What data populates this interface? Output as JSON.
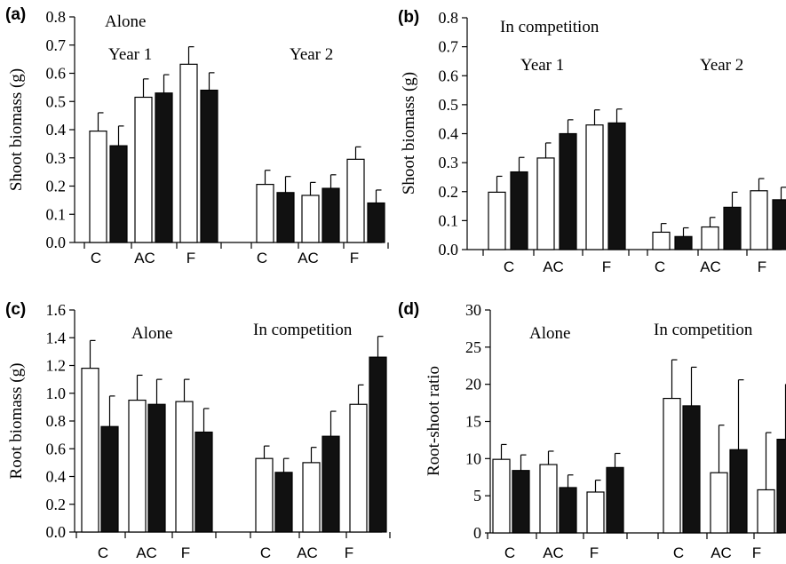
{
  "chart_data": [
    {
      "type": "bar",
      "panel_label": "(a)",
      "ylabel": "Shoot biomass (g)",
      "ylim": [
        0,
        0.8
      ],
      "yticks": [
        "0.0",
        "0.1",
        "0.2",
        "0.3",
        "0.4",
        "0.5",
        "0.6",
        "0.7",
        "0.8"
      ],
      "annotations": [
        "Alone",
        "Year 1",
        "Year 2"
      ],
      "groups": [
        {
          "categories": [
            "C",
            "AC",
            "F"
          ],
          "open": [
            0.395,
            0.515,
            0.632
          ],
          "open_err": [
            0.065,
            0.065,
            0.062
          ],
          "filled": [
            0.343,
            0.53,
            0.54
          ],
          "filled_err": [
            0.07,
            0.065,
            0.062
          ]
        },
        {
          "categories": [
            "C",
            "AC",
            "F"
          ],
          "open": [
            0.206,
            0.167,
            0.295
          ],
          "open_err": [
            0.05,
            0.046,
            0.044
          ],
          "filled": [
            0.177,
            0.192,
            0.14
          ],
          "filled_err": [
            0.057,
            0.048,
            0.046
          ]
        }
      ]
    },
    {
      "type": "bar",
      "panel_label": "(b)",
      "ylabel": "Shoot biomass (g)",
      "ylim": [
        0,
        0.8
      ],
      "yticks": [
        "0.0",
        "0.1",
        "0.2",
        "0.3",
        "0.4",
        "0.5",
        "0.6",
        "0.7",
        "0.8"
      ],
      "annotations": [
        "In competition",
        "Year 1",
        "Year 2"
      ],
      "groups": [
        {
          "categories": [
            "C",
            "AC",
            "F"
          ],
          "open": [
            0.198,
            0.316,
            0.43
          ],
          "open_err": [
            0.055,
            0.052,
            0.052
          ],
          "filled": [
            0.268,
            0.4,
            0.437
          ],
          "filled_err": [
            0.05,
            0.048,
            0.048
          ]
        },
        {
          "categories": [
            "C",
            "AC",
            "F"
          ],
          "open": [
            0.06,
            0.078,
            0.203
          ],
          "open_err": [
            0.03,
            0.033,
            0.042
          ],
          "filled": [
            0.045,
            0.146,
            0.172
          ],
          "filled_err": [
            0.03,
            0.052,
            0.043
          ]
        }
      ]
    },
    {
      "type": "bar",
      "panel_label": "(c)",
      "ylabel": "Root biomass (g)",
      "ylim": [
        0,
        1.6
      ],
      "yticks": [
        "0.0",
        "0.2",
        "0.4",
        "0.6",
        "0.8",
        "1.0",
        "1.2",
        "1.4",
        "1.6"
      ],
      "annotations": [
        "Alone",
        "In competition"
      ],
      "groups": [
        {
          "categories": [
            "C",
            "AC",
            "F"
          ],
          "open": [
            1.18,
            0.95,
            0.94
          ],
          "open_err": [
            0.2,
            0.18,
            0.16
          ],
          "filled": [
            0.76,
            0.92,
            0.72
          ],
          "filled_err": [
            0.22,
            0.18,
            0.17
          ]
        },
        {
          "categories": [
            "C",
            "AC",
            "F"
          ],
          "open": [
            0.53,
            0.5,
            0.92
          ],
          "open_err": [
            0.09,
            0.11,
            0.14
          ],
          "filled": [
            0.43,
            0.69,
            1.26
          ],
          "filled_err": [
            0.1,
            0.18,
            0.15
          ]
        }
      ]
    },
    {
      "type": "bar",
      "panel_label": "(d)",
      "ylabel": "Root-shoot ratio",
      "ylim": [
        0,
        30
      ],
      "yticks": [
        "0",
        "5",
        "10",
        "15",
        "20",
        "25",
        "30"
      ],
      "annotations": [
        "Alone",
        "In competition"
      ],
      "groups": [
        {
          "categories": [
            "C",
            "AC",
            "F"
          ],
          "open": [
            9.9,
            9.2,
            5.5
          ],
          "open_err": [
            2.0,
            1.8,
            1.6
          ],
          "filled": [
            8.4,
            6.1,
            8.8
          ],
          "filled_err": [
            2.1,
            1.7,
            1.9
          ]
        },
        {
          "categories": [
            "C",
            "AC",
            "F"
          ],
          "open": [
            18.1,
            8.1,
            5.8
          ],
          "open_err": [
            5.2,
            6.4,
            7.7
          ],
          "filled": [
            17.1,
            11.2,
            12.6
          ],
          "filled_err": [
            5.2,
            9.4,
            7.4
          ]
        }
      ]
    }
  ]
}
